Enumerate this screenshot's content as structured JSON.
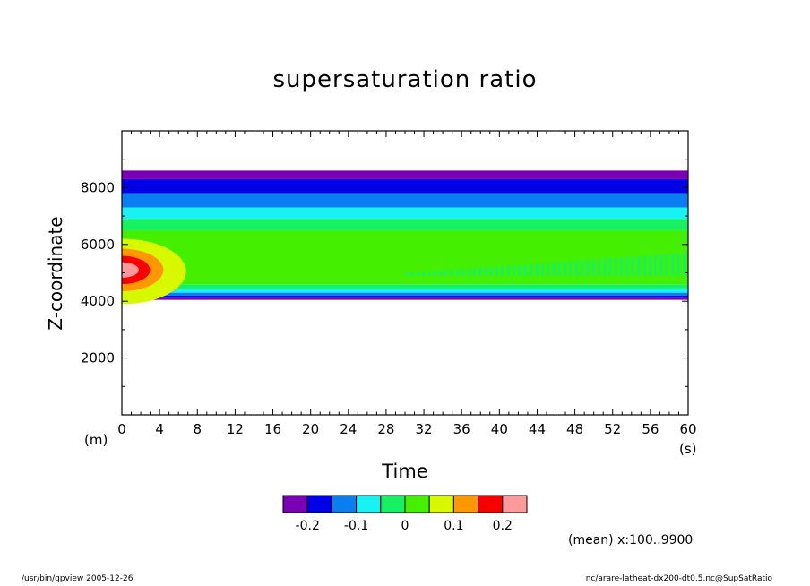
{
  "chart_data": {
    "type": "heatmap",
    "title": "supersaturation ratio",
    "xlabel": "Time",
    "ylabel": "Z-coordinate",
    "xunit": "(s)",
    "yunit": "(m)",
    "xlim": [
      0,
      60
    ],
    "ylim": [
      0,
      10000
    ],
    "xticks": [
      0,
      4,
      8,
      12,
      16,
      20,
      24,
      28,
      32,
      36,
      40,
      44,
      48,
      52,
      56,
      60
    ],
    "yticks": [
      2000,
      4000,
      6000,
      8000
    ],
    "color_levels": [
      "#7a00b4",
      "#0000e8",
      "#0a7ef0",
      "#18f2f2",
      "#18f064",
      "#44f000",
      "#d8f800",
      "#ff9800",
      "#f80000",
      "#ff9a9a"
    ],
    "colorbar_labels": [
      "-0.2",
      "-0.1",
      "0",
      "0.1",
      "0.2"
    ],
    "layers": [
      {
        "z": [
          8300,
          8600
        ],
        "level": 0
      },
      {
        "z": [
          7800,
          8300
        ],
        "level": 1
      },
      {
        "z": [
          7300,
          7800
        ],
        "level": 2
      },
      {
        "z": [
          6900,
          7300
        ],
        "level": 3
      },
      {
        "z": [
          6500,
          6900
        ],
        "level": 4
      },
      {
        "z": [
          4600,
          6500
        ],
        "level": 5
      },
      {
        "z": [
          4450,
          4600
        ],
        "level": 4
      },
      {
        "z": [
          4300,
          4450
        ],
        "level": 3
      },
      {
        "z": [
          4200,
          4300
        ],
        "level": 2
      },
      {
        "z": [
          4130,
          4200
        ],
        "level": 1
      },
      {
        "z": [
          4050,
          4130
        ],
        "level": 0
      }
    ],
    "anomaly": [
      {
        "level": 6,
        "x_extent": 6.8,
        "z_center": 5050,
        "z_half": 1150
      },
      {
        "level": 7,
        "x_extent": 4.4,
        "z_center": 5100,
        "z_half": 750
      },
      {
        "level": 8,
        "x_extent": 3.0,
        "z_center": 5100,
        "z_half": 500
      },
      {
        "level": 9,
        "x_extent": 1.8,
        "z_center": 5100,
        "z_half": 270
      }
    ],
    "wave_region": {
      "x_start": 30,
      "x_end": 59.5,
      "z_bottom": 4900,
      "z_top_start": 5000,
      "z_top_end": 5700,
      "level": 4
    }
  },
  "annotations": {
    "mean_info": "(mean) x:100..9900",
    "footer_left": "/usr/bin/gpview  2005-12-26",
    "footer_right": "nc/arare-latheat-dx200-dt0.5.nc@SupSatRatio"
  }
}
